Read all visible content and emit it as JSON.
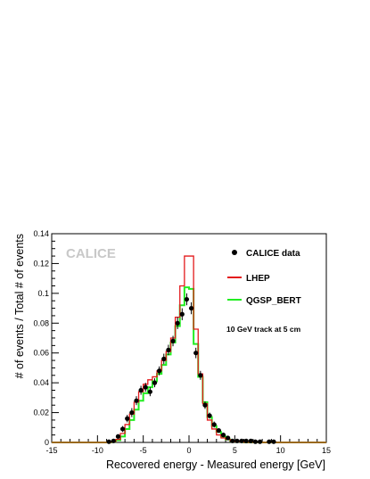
{
  "chart_data": {
    "type": "line",
    "title": "",
    "xlabel": "Recovered  energy - Measured  energy [GeV]",
    "ylabel": "# of events / Total # of events",
    "xlim": [
      -15,
      15
    ],
    "ylim": [
      0,
      0.14
    ],
    "xticks": [
      "-15",
      "-10",
      "-5",
      "0",
      "5",
      "10",
      "15"
    ],
    "yticks": [
      "0",
      "0.02",
      "0.04",
      "0.06",
      "0.08",
      "0.1",
      "0.12",
      "0.14"
    ],
    "grid": false,
    "legend_position": "top-right",
    "logo_text": "CALICE",
    "annotation": "10 GeV track at 5 cm",
    "legend": {
      "data": "CALICE data",
      "lhep": "LHEP",
      "qgsp": "QGSP_BERT"
    },
    "colors": {
      "data": "#000000",
      "lhep": "#e31a1c",
      "qgsp": "#22ee22",
      "logo": "#c8c8c8"
    },
    "x": [
      -9.75,
      -9.25,
      -8.75,
      -8.25,
      -7.75,
      -7.25,
      -6.75,
      -6.25,
      -5.75,
      -5.25,
      -4.75,
      -4.25,
      -3.75,
      -3.25,
      -2.75,
      -2.25,
      -1.75,
      -1.25,
      -0.75,
      -0.25,
      0.25,
      0.75,
      1.25,
      1.75,
      2.25,
      2.75,
      3.25,
      3.75,
      4.25,
      4.75,
      5.25,
      5.75,
      6.25,
      6.75,
      7.25,
      7.75,
      8.25,
      8.75,
      9.25,
      9.75
    ],
    "series": [
      {
        "name": "CALICE data",
        "style": "markers",
        "values": [
          0.0,
          0.0,
          0.0005,
          0.001,
          0.004,
          0.009,
          0.016,
          0.02,
          0.028,
          0.035,
          0.037,
          0.034,
          0.04,
          0.048,
          0.056,
          0.062,
          0.068,
          0.08,
          0.086,
          0.096,
          0.09,
          0.06,
          0.045,
          0.025,
          0.018,
          0.012,
          0.008,
          0.005,
          0.003,
          0.001,
          0.001,
          0.001,
          0.001,
          0.001,
          0.0005,
          0.0005,
          0.0,
          0.0005,
          0.0005,
          0.0
        ],
        "errors": [
          0,
          0,
          0.0005,
          0.001,
          0.0015,
          0.002,
          0.0025,
          0.003,
          0.003,
          0.003,
          0.003,
          0.003,
          0.003,
          0.003,
          0.0035,
          0.0035,
          0.0035,
          0.004,
          0.004,
          0.004,
          0.004,
          0.0035,
          0.003,
          0.0025,
          0.002,
          0.002,
          0.0015,
          0.0015,
          0.001,
          0.0008,
          0.0008,
          0.0008,
          0.0008,
          0.0008,
          0.0005,
          0.0005,
          0,
          0.0005,
          0.0005,
          0
        ]
      },
      {
        "name": "LHEP",
        "style": "histogram",
        "values": [
          0.0,
          0.0,
          0.0,
          0.0005,
          0.002,
          0.006,
          0.012,
          0.019,
          0.027,
          0.034,
          0.039,
          0.042,
          0.044,
          0.048,
          0.055,
          0.061,
          0.07,
          0.084,
          0.105,
          0.125,
          0.125,
          0.076,
          0.046,
          0.026,
          0.015,
          0.009,
          0.005,
          0.003,
          0.002,
          0.001,
          0.0005,
          0.0005,
          0.0,
          0.0,
          0.0,
          0.0,
          0.0,
          0.0,
          0.0,
          0.0
        ]
      },
      {
        "name": "QGSP_BERT",
        "style": "histogram",
        "values": [
          0.0,
          0.0,
          0.0,
          0.0005,
          0.0015,
          0.004,
          0.009,
          0.015,
          0.022,
          0.028,
          0.033,
          0.037,
          0.041,
          0.046,
          0.052,
          0.059,
          0.067,
          0.078,
          0.092,
          0.104,
          0.103,
          0.066,
          0.044,
          0.027,
          0.017,
          0.011,
          0.007,
          0.004,
          0.002,
          0.001,
          0.0005,
          0.0005,
          0.0,
          0.0,
          0.0,
          0.0,
          0.0,
          0.0,
          0.0,
          0.0
        ]
      }
    ]
  }
}
